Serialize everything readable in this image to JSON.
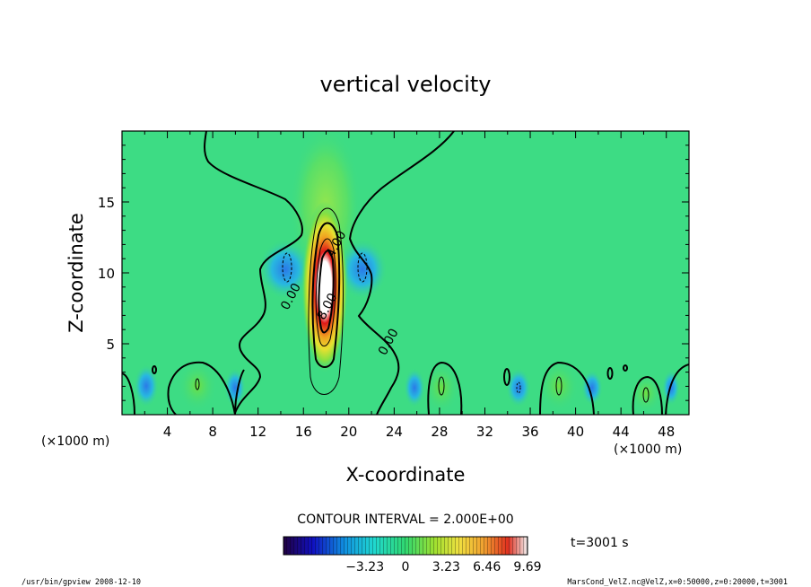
{
  "chart_data": {
    "type": "heatmap",
    "title": "vertical velocity",
    "xlabel": "X-coordinate",
    "ylabel": "Z-coordinate",
    "x_unit": "(×1000 m)",
    "y_unit": "(×1000 m)",
    "xlim": [
      0,
      50
    ],
    "ylim": [
      0,
      20
    ],
    "x_ticks": [
      4,
      8,
      12,
      16,
      20,
      24,
      28,
      32,
      36,
      40,
      44,
      48
    ],
    "y_ticks": [
      5,
      10,
      15
    ],
    "contour_labels": [
      {
        "text": "4.00",
        "x": 19.2,
        "z": 11.9
      },
      {
        "text": "0.00",
        "x": 15.2,
        "z": 8.2
      },
      {
        "text": "8.00",
        "x": 18.4,
        "z": 7.5
      },
      {
        "text": "0.00",
        "x": 23.8,
        "z": 5.0
      }
    ],
    "contour_interval_text": "CONTOUR INTERVAL = 2.000E+00",
    "colorbar": {
      "min": -9.69,
      "max": 9.69,
      "tick_values": [
        -3.23,
        0,
        3.23,
        6.46,
        9.69
      ],
      "tick_labels": [
        "−3.23",
        "0",
        "3.23",
        "6.46",
        "9.69"
      ]
    },
    "time_label": "t=3001 s",
    "footer_left": "/usr/bin/gpview   2008-12-10",
    "footer_right": "MarsCond_VelZ.nc@VelZ,x=0:50000,z=0:20000,t=3001"
  }
}
